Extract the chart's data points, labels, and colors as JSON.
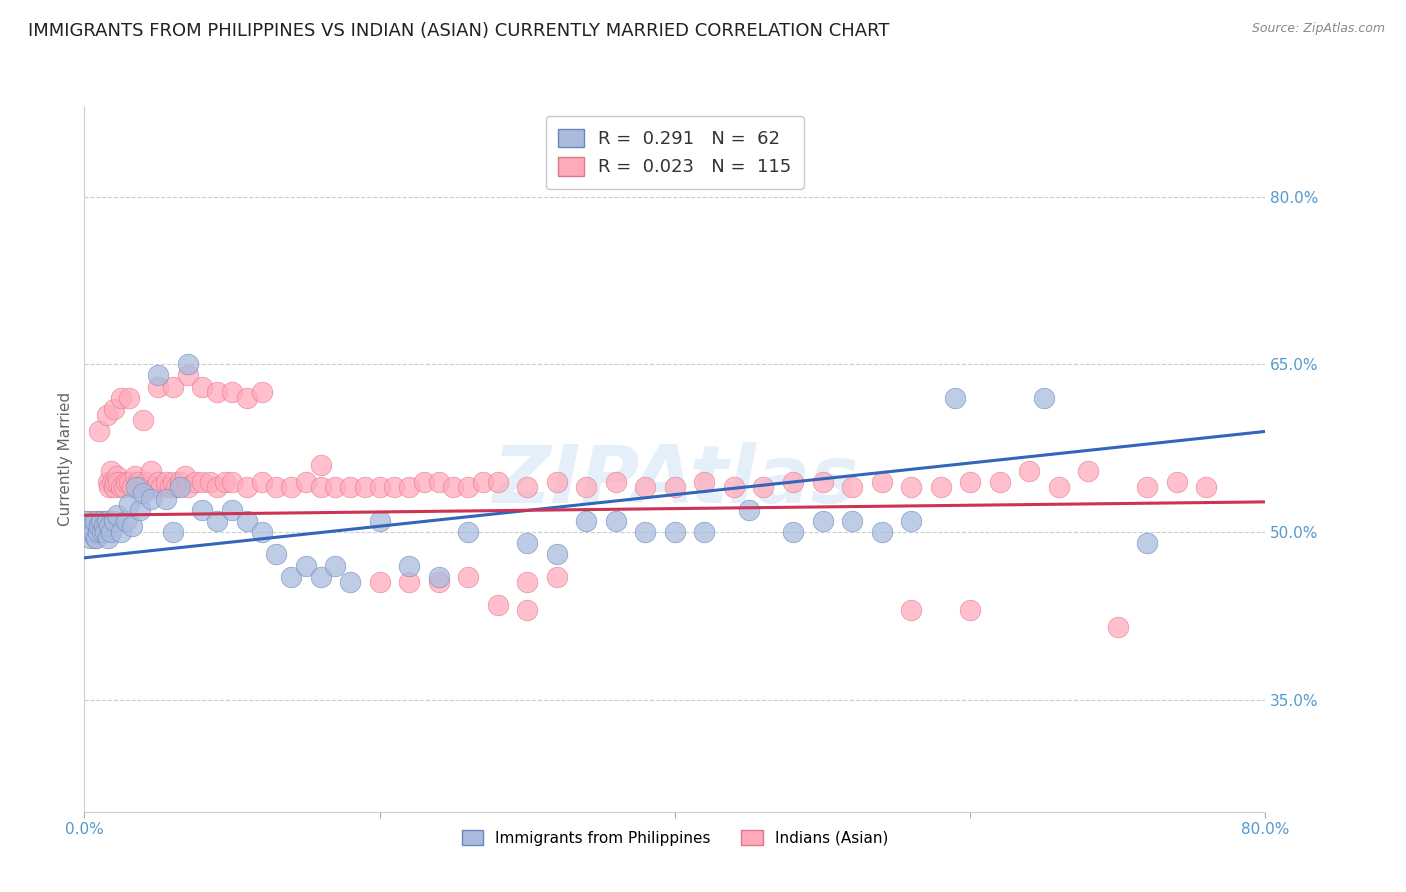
{
  "title": "IMMIGRANTS FROM PHILIPPINES VS INDIAN (ASIAN) CURRENTLY MARRIED CORRELATION CHART",
  "source": "Source: ZipAtlas.com",
  "ylabel": "Currently Married",
  "xlim": [
    0.0,
    0.8
  ],
  "ylim": [
    0.25,
    0.88
  ],
  "yticks": [
    0.35,
    0.5,
    0.65,
    0.8
  ],
  "ytick_labels": [
    "35.0%",
    "50.0%",
    "65.0%",
    "80.0%"
  ],
  "xticks": [
    0.0,
    0.2,
    0.4,
    0.6,
    0.8
  ],
  "xtick_labels": [
    "0.0%",
    "",
    "",
    "",
    "80.0%"
  ],
  "background_color": "#ffffff",
  "grid_color": "#cccccc",
  "watermark_color": "#aaccee",
  "tick_color": "#5599cc",
  "title_color": "#222222",
  "ylabel_color": "#666666",
  "series": [
    {
      "label": "Immigrants from Philippines",
      "R": 0.291,
      "N": 62,
      "color": "#aabbdd",
      "edge_color": "#6688bb",
      "line_color": "#3366bb",
      "x": [
        0.002,
        0.004,
        0.005,
        0.006,
        0.007,
        0.008,
        0.009,
        0.01,
        0.011,
        0.012,
        0.013,
        0.014,
        0.015,
        0.016,
        0.017,
        0.018,
        0.02,
        0.022,
        0.025,
        0.028,
        0.03,
        0.032,
        0.035,
        0.038,
        0.04,
        0.045,
        0.05,
        0.055,
        0.06,
        0.065,
        0.07,
        0.08,
        0.09,
        0.1,
        0.11,
        0.12,
        0.13,
        0.14,
        0.15,
        0.16,
        0.17,
        0.18,
        0.2,
        0.22,
        0.24,
        0.26,
        0.3,
        0.32,
        0.34,
        0.36,
        0.38,
        0.4,
        0.42,
        0.45,
        0.48,
        0.5,
        0.52,
        0.54,
        0.56,
        0.59,
        0.65,
        0.72
      ],
      "y": [
        0.51,
        0.495,
        0.505,
        0.5,
        0.51,
        0.495,
        0.5,
        0.505,
        0.51,
        0.5,
        0.505,
        0.5,
        0.51,
        0.495,
        0.505,
        0.5,
        0.51,
        0.515,
        0.5,
        0.51,
        0.525,
        0.505,
        0.54,
        0.52,
        0.535,
        0.53,
        0.64,
        0.53,
        0.5,
        0.54,
        0.65,
        0.52,
        0.51,
        0.52,
        0.51,
        0.5,
        0.48,
        0.46,
        0.47,
        0.46,
        0.47,
        0.455,
        0.51,
        0.47,
        0.46,
        0.5,
        0.49,
        0.48,
        0.51,
        0.51,
        0.5,
        0.5,
        0.5,
        0.52,
        0.5,
        0.51,
        0.51,
        0.5,
        0.51,
        0.62,
        0.62,
        0.49
      ],
      "line_x": [
        0.0,
        0.8
      ],
      "line_y": [
        0.477,
        0.59
      ]
    },
    {
      "label": "Indians (Asian)",
      "R": 0.023,
      "N": 115,
      "color": "#ffaabb",
      "edge_color": "#dd7788",
      "line_color": "#cc3355",
      "x": [
        0.002,
        0.004,
        0.005,
        0.006,
        0.007,
        0.008,
        0.009,
        0.01,
        0.011,
        0.012,
        0.013,
        0.014,
        0.015,
        0.016,
        0.017,
        0.018,
        0.019,
        0.02,
        0.021,
        0.022,
        0.023,
        0.025,
        0.027,
        0.028,
        0.03,
        0.032,
        0.034,
        0.036,
        0.038,
        0.04,
        0.042,
        0.045,
        0.048,
        0.05,
        0.052,
        0.055,
        0.058,
        0.06,
        0.062,
        0.065,
        0.068,
        0.07,
        0.075,
        0.08,
        0.085,
        0.09,
        0.095,
        0.1,
        0.11,
        0.12,
        0.13,
        0.14,
        0.15,
        0.16,
        0.17,
        0.18,
        0.19,
        0.2,
        0.21,
        0.22,
        0.23,
        0.24,
        0.25,
        0.26,
        0.27,
        0.28,
        0.3,
        0.32,
        0.34,
        0.36,
        0.38,
        0.4,
        0.42,
        0.44,
        0.46,
        0.48,
        0.5,
        0.52,
        0.54,
        0.56,
        0.58,
        0.6,
        0.62,
        0.64,
        0.66,
        0.68,
        0.72,
        0.74,
        0.76,
        0.01,
        0.015,
        0.02,
        0.025,
        0.03,
        0.04,
        0.05,
        0.06,
        0.07,
        0.08,
        0.09,
        0.1,
        0.11,
        0.12,
        0.16,
        0.2,
        0.22,
        0.24,
        0.26,
        0.3,
        0.32,
        0.28,
        0.3,
        0.56,
        0.6,
        0.7
      ],
      "y": [
        0.51,
        0.5,
        0.505,
        0.51,
        0.495,
        0.505,
        0.51,
        0.5,
        0.51,
        0.505,
        0.51,
        0.5,
        0.505,
        0.545,
        0.54,
        0.555,
        0.545,
        0.54,
        0.545,
        0.55,
        0.545,
        0.54,
        0.54,
        0.545,
        0.545,
        0.54,
        0.55,
        0.545,
        0.54,
        0.54,
        0.545,
        0.555,
        0.54,
        0.545,
        0.54,
        0.545,
        0.54,
        0.545,
        0.54,
        0.545,
        0.55,
        0.54,
        0.545,
        0.545,
        0.545,
        0.54,
        0.545,
        0.545,
        0.54,
        0.545,
        0.54,
        0.54,
        0.545,
        0.54,
        0.54,
        0.54,
        0.54,
        0.54,
        0.54,
        0.54,
        0.545,
        0.545,
        0.54,
        0.54,
        0.545,
        0.545,
        0.54,
        0.545,
        0.54,
        0.545,
        0.54,
        0.54,
        0.545,
        0.54,
        0.54,
        0.545,
        0.545,
        0.54,
        0.545,
        0.54,
        0.54,
        0.545,
        0.545,
        0.555,
        0.54,
        0.555,
        0.54,
        0.545,
        0.54,
        0.59,
        0.605,
        0.61,
        0.62,
        0.62,
        0.6,
        0.63,
        0.63,
        0.64,
        0.63,
        0.625,
        0.625,
        0.62,
        0.625,
        0.56,
        0.455,
        0.455,
        0.455,
        0.46,
        0.455,
        0.46,
        0.435,
        0.43,
        0.43,
        0.43,
        0.415
      ],
      "line_x": [
        0.0,
        0.8
      ],
      "line_y": [
        0.515,
        0.527
      ]
    }
  ],
  "title_fontsize": 13,
  "axis_fontsize": 11,
  "tick_fontsize": 11
}
